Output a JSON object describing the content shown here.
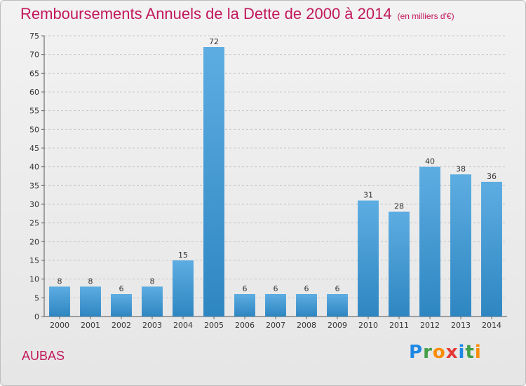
{
  "header": {
    "title": "Remboursements Annuels de la Dette de 2000 à 2014",
    "unit": "(en milliers d'€)"
  },
  "footer": {
    "commune": "AUBAS",
    "logo_letters": [
      "P",
      "r",
      "o",
      "x",
      "i",
      "t",
      "i"
    ],
    "logo_colors": [
      "#1e88e5",
      "#43a047",
      "#fb8c00",
      "#e53935",
      "#1e88e5",
      "#43a047",
      "#fb8c00"
    ]
  },
  "chart_data": {
    "type": "bar",
    "title": "Remboursements Annuels de la Dette de 2000 à 2014",
    "xlabel": "",
    "ylabel": "",
    "categories": [
      "2000",
      "2001",
      "2002",
      "2003",
      "2004",
      "2005",
      "2006",
      "2007",
      "2008",
      "2009",
      "2010",
      "2011",
      "2012",
      "2013",
      "2014"
    ],
    "values": [
      8,
      8,
      6,
      8,
      15,
      72,
      6,
      6,
      6,
      6,
      31,
      28,
      40,
      38,
      36
    ],
    "ylim": [
      0,
      75
    ],
    "yticks": [
      0,
      5,
      10,
      15,
      20,
      25,
      30,
      35,
      40,
      45,
      50,
      55,
      60,
      65,
      70,
      75
    ],
    "grid": true,
    "bar_color_top": "#5dade2",
    "bar_color_bottom": "#2e86c1"
  }
}
